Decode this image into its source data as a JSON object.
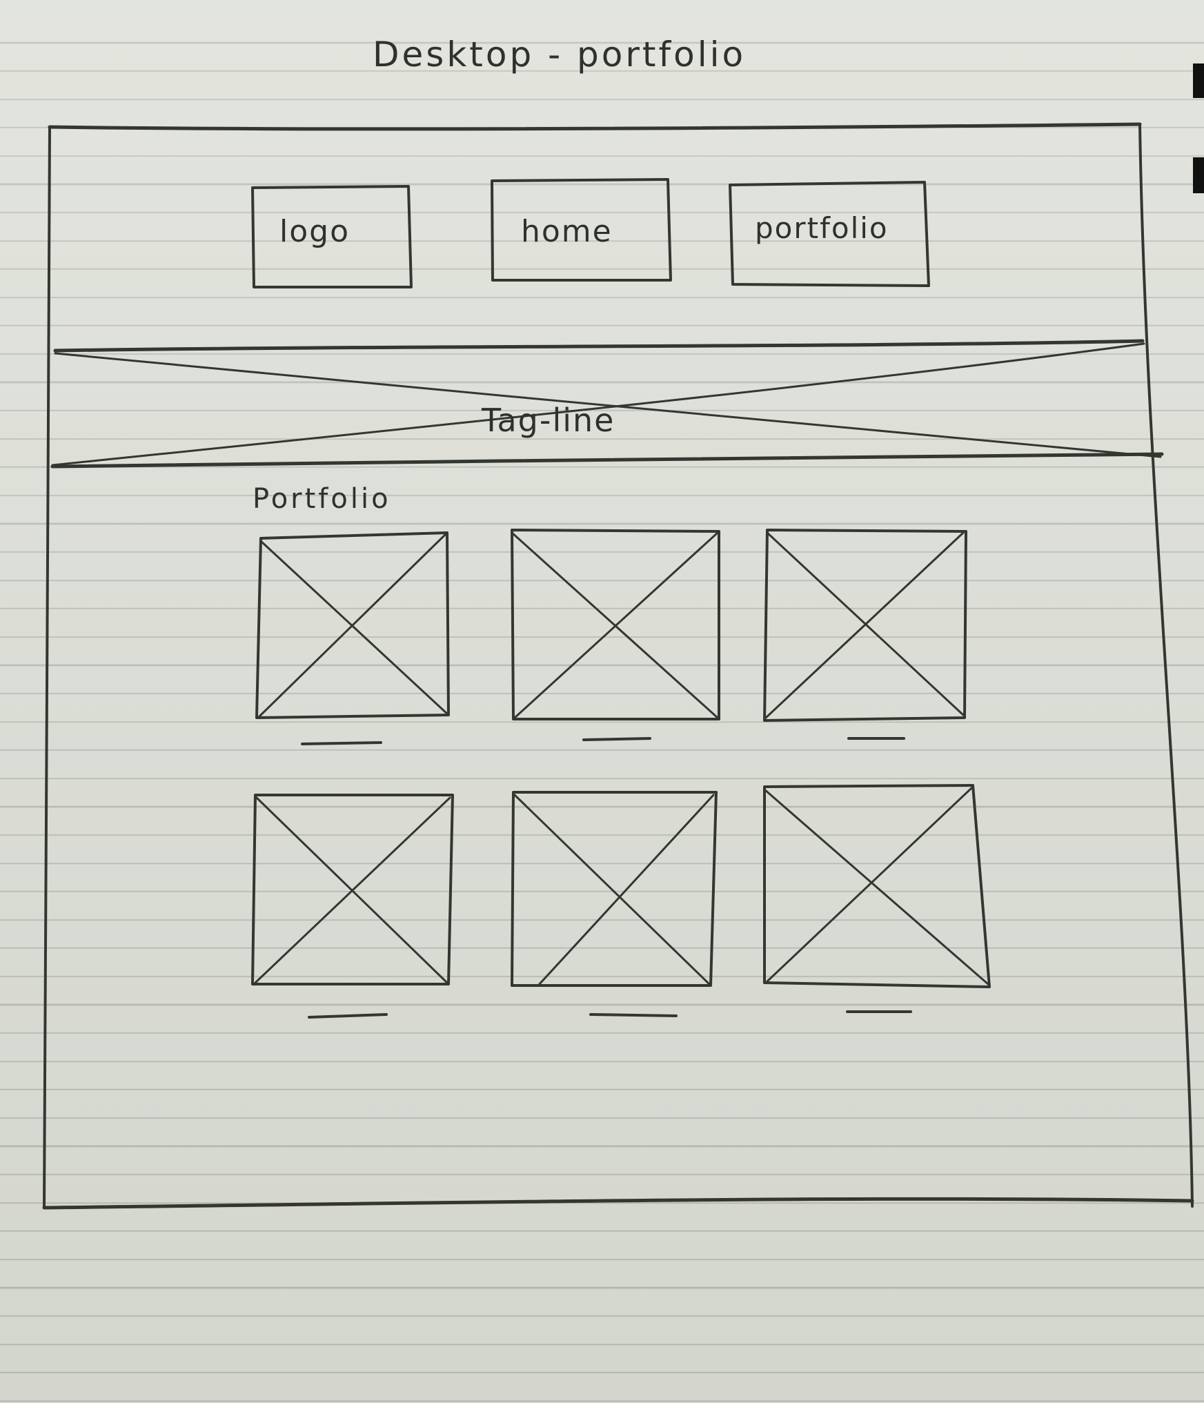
{
  "page_title": "Desktop - portfolio",
  "header": {
    "nav_boxes": [
      "logo",
      "home",
      "portfolio"
    ]
  },
  "hero": {
    "label": "Tag-line"
  },
  "portfolio_section": {
    "heading": "Portfolio",
    "rows": 2,
    "columns": 3,
    "item_count": 6
  },
  "colors": {
    "paper": "#dcdfd6",
    "ruling": "#b8bcb5",
    "pencil": "#333731"
  }
}
